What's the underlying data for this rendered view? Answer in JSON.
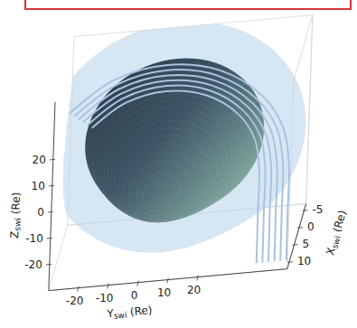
{
  "chart_data": {
    "type": "surface3d",
    "xlabel": [
      "X",
      "swi",
      " (Re)"
    ],
    "ylabel": [
      "Y",
      "swi",
      " (Re)"
    ],
    "zlabel": [
      "Z",
      "swi",
      " (Re)"
    ],
    "xlim": [
      -7,
      12
    ],
    "xticks": [
      -5,
      0,
      5,
      10
    ],
    "ylim": [
      -30,
      50
    ],
    "yticks": [
      -20,
      -10,
      0,
      10,
      20
    ],
    "zlim": [
      -30,
      42
    ],
    "zticks": [
      -20,
      -10,
      0,
      10,
      20
    ],
    "grid": false,
    "series": [
      {
        "type": "surface",
        "color": "#bcd6ec",
        "center_y": 5,
        "center_z": 0,
        "x": [
          12,
          11,
          10,
          9,
          8,
          7,
          6,
          5,
          4,
          3,
          2,
          1,
          0,
          -1,
          -2,
          -3,
          -4,
          -5,
          -6,
          -7
        ],
        "r": [
          9.8,
          13.9,
          17.0,
          19.7,
          22.0,
          24.1,
          26.0,
          27.8,
          29.5,
          31.1,
          32.6,
          34.1,
          35.5,
          36.8,
          38.1,
          39.4,
          40.6,
          41.7,
          42.9,
          44.0
        ]
      },
      {
        "type": "surface",
        "color": "#3d5566",
        "center_y": 5,
        "center_z": 0,
        "x": [
          10,
          9.5,
          9,
          8,
          7,
          6,
          5,
          4,
          3,
          2,
          1,
          0,
          -1,
          -2,
          -3,
          -4,
          -5,
          -6,
          -7
        ],
        "r": [
          0,
          5.1,
          7.3,
          10.3,
          12.6,
          14.6,
          16.3,
          17.8,
          19.3,
          20.6,
          21.8,
          23.0,
          24.1,
          25.2,
          26.2,
          27.2,
          28.2,
          29.1,
          30.0
        ]
      },
      {
        "type": "line",
        "color": "#a9c3e0",
        "x": [
          4,
          4,
          4,
          4,
          4,
          4,
          4,
          7,
          10
        ],
        "y": [
          -19.5,
          -8.5,
          5,
          18.5,
          29.5,
          35.1,
          37,
          38,
          39
        ],
        "z": [
          20.6,
          29.0,
          32,
          29.0,
          20.6,
          10.9,
          0,
          -14,
          -29
        ]
      },
      {
        "type": "line",
        "color": "#a9c3e0",
        "x": [
          4,
          4,
          4,
          4,
          4,
          4,
          4,
          7,
          10
        ],
        "y": [
          -21.0,
          -9.4,
          5,
          19.4,
          31.0,
          37.0,
          39,
          40,
          41
        ],
        "z": [
          21.9,
          30.8,
          34,
          30.8,
          21.9,
          11.6,
          0,
          -14,
          -29
        ]
      },
      {
        "type": "line",
        "color": "#a9c3e0",
        "x": [
          4,
          4,
          4,
          4,
          4,
          4,
          4,
          7,
          10
        ],
        "y": [
          -22.6,
          -10.2,
          5,
          20.2,
          32.6,
          38.8,
          41,
          42,
          43
        ],
        "z": [
          23.1,
          32.6,
          36,
          32.6,
          23.1,
          12.3,
          0,
          -14,
          -29
        ]
      },
      {
        "type": "line",
        "color": "#a9c3e0",
        "x": [
          4,
          4,
          4,
          4,
          4,
          4,
          4,
          7,
          10
        ],
        "y": [
          -24.1,
          -11.1,
          5,
          21.1,
          34.1,
          40.7,
          43,
          44,
          45
        ],
        "z": [
          24.4,
          34.4,
          38,
          34.4,
          24.4,
          13.0,
          0,
          -14,
          -29
        ]
      },
      {
        "type": "line",
        "color": "#a9c3e0",
        "x": [
          4,
          4,
          4,
          4,
          4,
          4,
          4,
          7,
          10
        ],
        "y": [
          -25.6,
          -11.9,
          5,
          21.9,
          35.6,
          42.6,
          45,
          46,
          47
        ],
        "z": [
          25.7,
          36.2,
          40,
          36.2,
          25.7,
          13.7,
          0,
          -14,
          -29
        ]
      },
      {
        "type": "line",
        "color": "#a9c3e0",
        "x": [
          4,
          4,
          4,
          4,
          4,
          4,
          4,
          7,
          10
        ],
        "y": [
          -27.2,
          -12.8,
          5,
          22.8,
          37.2,
          44.5,
          47,
          48,
          49
        ],
        "z": [
          27.0,
          38.1,
          42,
          38.1,
          27.0,
          14.4,
          0,
          -14,
          -29
        ]
      }
    ]
  }
}
